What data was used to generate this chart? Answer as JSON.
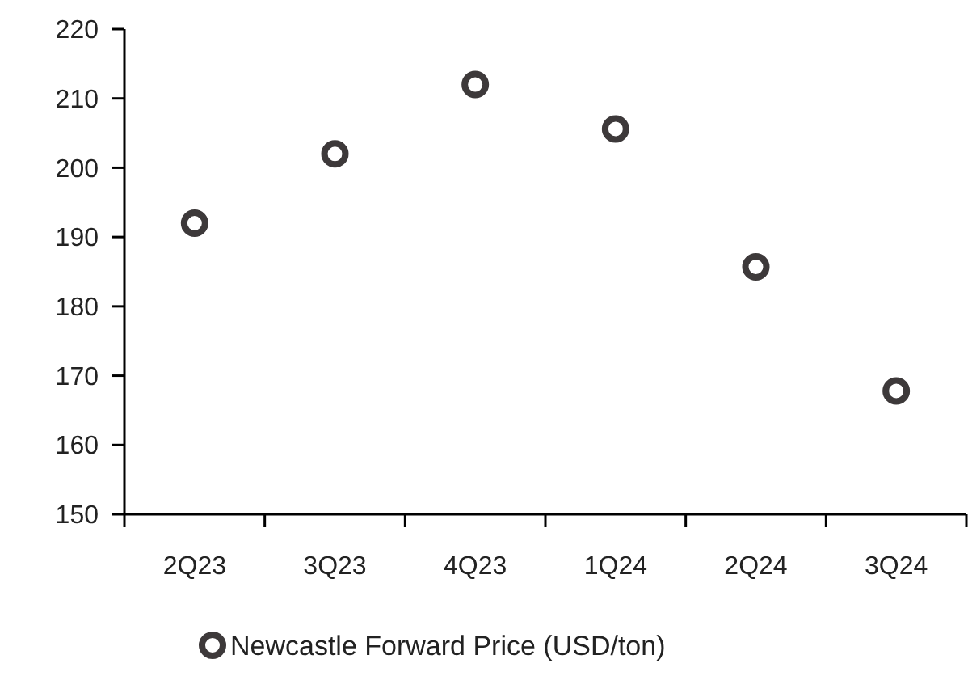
{
  "chart_data": {
    "type": "scatter",
    "categories": [
      "2Q23",
      "3Q23",
      "4Q23",
      "1Q24",
      "2Q24",
      "3Q24"
    ],
    "series": [
      {
        "name": "Newcastle Forward Price (USD/ton)",
        "color": "#3d393a",
        "values": [
          192,
          202,
          212,
          205.6,
          185.7,
          167.8
        ]
      }
    ],
    "ylim": [
      150,
      220
    ],
    "yticks": [
      150,
      160,
      170,
      180,
      190,
      200,
      210,
      220
    ],
    "grid": false,
    "legend": "bottom",
    "marker": "circle"
  }
}
